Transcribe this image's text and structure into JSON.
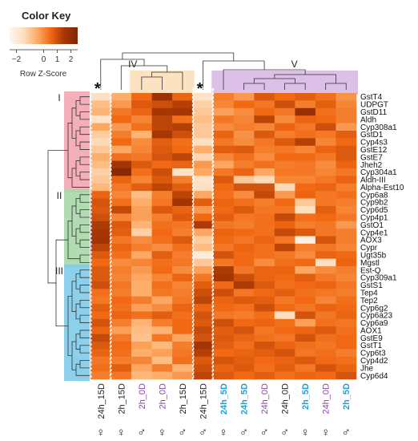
{
  "chart_data": {
    "type": "heatmap",
    "color_key": {
      "title": "Color Key",
      "scale_label": "Row Z-Score",
      "ticks": [
        "−2",
        "0",
        "1",
        "2"
      ],
      "tick_values": [
        -2,
        0,
        1,
        2
      ],
      "range": [
        -2.5,
        2.5
      ],
      "colors": [
        "#fff6ee",
        "#fde0c2",
        "#fdae6b",
        "#f16913",
        "#a63603",
        "#7f2704"
      ]
    },
    "rows": [
      "GstT4",
      "UDPGT",
      "GstD11",
      "Aldh",
      "Cyp308a1",
      "GstD1",
      "Cyp4s3",
      "GstE12",
      "GstE7",
      "Jheh2",
      "Cyp304a1",
      "Aldh-III",
      "Alpha-Est10",
      "Cyp6a8",
      "Cyp9b2",
      "Cyp6d5",
      "Cyp4p1",
      "GstO1",
      "Cyp4e1",
      "AOX3",
      "Cypr",
      "Ugt35b",
      "Mgstl",
      "Est-Q",
      "Cyp309a1",
      "GstS1",
      "Tep4",
      "Tep2",
      "Cyp6g2",
      "Cyp6a23",
      "Cyp6a9",
      "AOX1",
      "GstE9",
      "GstT1",
      "Cyp6t3",
      "Cyp4d2",
      "Jhe",
      "Cyp6d4"
    ],
    "columns": [
      {
        "label": "24h_15D",
        "sex": "♀",
        "color": "#222222",
        "bold": false
      },
      {
        "label": "2h_15D",
        "sex": "♀",
        "color": "#222222",
        "bold": false
      },
      {
        "label": "2h_0D",
        "sex": "♂",
        "color": "#8e44ad",
        "bold": false
      },
      {
        "label": "2h_0D",
        "sex": "♀",
        "color": "#8e44ad",
        "bold": false
      },
      {
        "label": "2h_15D",
        "sex": "♂",
        "color": "#222222",
        "bold": false
      },
      {
        "label": "24h_15D",
        "sex": "♂",
        "color": "#222222",
        "bold": false
      },
      {
        "label": "24h_5D",
        "sex": "♀",
        "color": "#1f9ed8",
        "bold": true
      },
      {
        "label": "24h_5D",
        "sex": "♂",
        "color": "#1f9ed8",
        "bold": true
      },
      {
        "label": "24h_0D",
        "sex": "♂",
        "color": "#8e44ad",
        "bold": false
      },
      {
        "label": "24h_0D",
        "sex": "♂",
        "color": "#222222",
        "bold": false
      },
      {
        "label": "2h_5D",
        "sex": "♀",
        "color": "#1f9ed8",
        "bold": true
      },
      {
        "label": "24h_0D",
        "sex": "♀",
        "color": "#8e44ad",
        "bold": false
      },
      {
        "label": "2h_5D",
        "sex": "♂",
        "color": "#1f9ed8",
        "bold": true
      }
    ],
    "values": [
      [
        -1.5,
        -0.5,
        0.5,
        1.8,
        0.6,
        -1.6,
        0.2,
        -0.2,
        0.8,
        0.5,
        0.7,
        0.4,
        -0.1
      ],
      [
        -0.8,
        -0.2,
        0.8,
        1.0,
        1.3,
        -1.2,
        0.1,
        0.5,
        0.3,
        1.0,
        0.2,
        0.7,
        0.1
      ],
      [
        -0.6,
        0.3,
        0.6,
        1.5,
        1.5,
        -1.0,
        -0.3,
        0.0,
        0.5,
        0.3,
        1.9,
        0.4,
        0.2
      ],
      [
        -1.6,
        0.5,
        0.1,
        1.2,
        0.4,
        -0.8,
        0.3,
        0.1,
        1.2,
        0.0,
        0.6,
        0.5,
        0.2
      ],
      [
        -0.4,
        -0.2,
        0.4,
        1.2,
        1.3,
        -1.0,
        0.0,
        0.2,
        0.1,
        0.6,
        0.3,
        1.0,
        -0.2
      ],
      [
        -1.1,
        0.2,
        -0.6,
        1.5,
        1.0,
        -1.0,
        0.6,
        -0.1,
        0.8,
        0.2,
        0.4,
        0.3,
        0.7
      ],
      [
        -1.4,
        0.5,
        0.0,
        0.7,
        0.4,
        -1.5,
        0.3,
        0.0,
        0.3,
        0.8,
        1.3,
        0.1,
        0.5
      ],
      [
        -1.0,
        -0.4,
        0.1,
        0.8,
        0.5,
        -0.5,
        0.7,
        0.8,
        0.2,
        0.3,
        0.1,
        0.6,
        0.8
      ],
      [
        -0.5,
        0.4,
        0.3,
        0.9,
        1.2,
        -1.3,
        0.1,
        0.4,
        0.0,
        0.5,
        0.5,
        0.3,
        0.8
      ],
      [
        -0.8,
        1.6,
        0.8,
        0.5,
        0.6,
        -0.2,
        -0.4,
        0.2,
        0.4,
        0.2,
        0.3,
        0.0,
        0.6
      ],
      [
        -1.2,
        2.3,
        0.4,
        1.0,
        -1.6,
        -0.4,
        0.3,
        0.6,
        -0.4,
        0.3,
        0.3,
        0.1,
        0.3
      ],
      [
        -1.0,
        0.6,
        0.1,
        0.8,
        0.2,
        -1.6,
        0.8,
        -1.0,
        -1.4,
        0.1,
        0.1,
        0.3,
        0.6
      ],
      [
        -0.7,
        0.3,
        0.7,
        1.2,
        0.7,
        -1.5,
        0.5,
        0.9,
        0.9,
        -1.4,
        0.5,
        0.6,
        0.2
      ],
      [
        0.6,
        0.1,
        -0.8,
        0.2,
        1.2,
        -0.4,
        0.4,
        0.0,
        1.1,
        -0.2,
        0.6,
        0.3,
        0.4
      ],
      [
        0.9,
        0.4,
        -0.5,
        0.3,
        1.6,
        0.7,
        0.6,
        0.4,
        0.2,
        0.5,
        -1.0,
        0.3,
        0.2
      ],
      [
        0.8,
        1.1,
        -0.3,
        0.8,
        0.6,
        -0.2,
        0.5,
        0.8,
        0.3,
        0.3,
        -1.5,
        0.7,
        0.1
      ],
      [
        1.0,
        0.1,
        -0.3,
        0.2,
        0.8,
        0.5,
        0.7,
        0.3,
        0.4,
        1.1,
        0.4,
        0.5,
        0.3
      ],
      [
        1.4,
        0.8,
        -0.6,
        0.4,
        0.3,
        1.4,
        0.3,
        0.2,
        0.4,
        0.6,
        0.2,
        0.3,
        -0.2
      ],
      [
        1.5,
        0.7,
        -1.2,
        0.5,
        0.2,
        -0.4,
        0.6,
        0.5,
        0.4,
        1.1,
        0.8,
        0.3,
        0.2
      ],
      [
        1.6,
        0.3,
        0.0,
        0.4,
        0.8,
        -1.1,
        0.5,
        0.3,
        0.6,
        0.3,
        -2.2,
        0.9,
        0.2
      ],
      [
        1.2,
        0.6,
        0.2,
        0.0,
        0.4,
        -0.8,
        0.3,
        0.6,
        0.4,
        1.2,
        0.2,
        0.3,
        0.1
      ],
      [
        0.8,
        0.4,
        -0.4,
        0.7,
        0.2,
        -2.0,
        0.9,
        0.5,
        0.4,
        0.3,
        0.0,
        0.6,
        0.5
      ],
      [
        0.5,
        0.0,
        0.1,
        0.4,
        0.3,
        -1.0,
        0.3,
        0.5,
        0.0,
        0.4,
        0.5,
        -1.5,
        0.6
      ],
      [
        0.8,
        0.2,
        -0.2,
        0.5,
        0.0,
        -0.3,
        1.4,
        0.3,
        0.6,
        0.6,
        -0.4,
        0.0,
        0.2
      ],
      [
        0.8,
        0.1,
        -0.4,
        0.1,
        0.6,
        0.3,
        1.5,
        1.0,
        0.6,
        0.5,
        0.7,
        0.3,
        0.1
      ],
      [
        1.0,
        0.3,
        -0.5,
        0.4,
        0.1,
        0.7,
        0.5,
        1.4,
        0.8,
        0.4,
        0.5,
        0.6,
        0.3
      ],
      [
        0.4,
        0.2,
        -0.5,
        0.3,
        0.2,
        1.0,
        1.0,
        0.3,
        0.5,
        0.7,
        0.4,
        0.3,
        0.2
      ],
      [
        0.3,
        0.5,
        0.2,
        -0.4,
        0.3,
        1.2,
        0.6,
        0.8,
        0.7,
        0.3,
        0.5,
        0.1,
        0.4
      ],
      [
        0.7,
        0.4,
        -0.3,
        0.0,
        0.6,
        0.6,
        0.5,
        0.4,
        1.0,
        0.5,
        0.3,
        0.6,
        0.5
      ],
      [
        0.5,
        0.6,
        0.4,
        0.7,
        0.4,
        0.9,
        0.3,
        0.2,
        0.4,
        -1.5,
        0.9,
        0.3,
        0.6
      ],
      [
        0.9,
        0.2,
        -0.6,
        0.2,
        0.5,
        0.8,
        1.0,
        0.5,
        0.6,
        0.4,
        -0.3,
        0.4,
        0.3
      ],
      [
        0.6,
        -0.3,
        -0.8,
        -0.6,
        0.5,
        1.1,
        0.7,
        0.9,
        0.3,
        0.5,
        0.6,
        0.8,
        0.4
      ],
      [
        1.1,
        0.3,
        -0.9,
        0.3,
        -0.4,
        0.9,
        0.8,
        0.6,
        0.4,
        0.3,
        0.9,
        0.4,
        0.5
      ],
      [
        0.8,
        0.5,
        -0.3,
        -0.7,
        0.2,
        1.6,
        0.7,
        0.4,
        0.9,
        0.6,
        0.4,
        0.3,
        0.5
      ],
      [
        0.6,
        0.4,
        -0.5,
        -0.3,
        0.3,
        1.3,
        0.5,
        0.6,
        0.7,
        0.9,
        0.3,
        0.4,
        0.2
      ],
      [
        0.3,
        0.2,
        0.1,
        -0.8,
        0.4,
        0.8,
        0.9,
        0.7,
        0.5,
        0.6,
        0.8,
        0.5,
        0.4
      ],
      [
        0.4,
        0.7,
        -0.4,
        0.2,
        -0.6,
        1.0,
        0.6,
        0.8,
        0.4,
        0.7,
        0.3,
        0.9,
        0.6
      ],
      [
        0.2,
        0.3,
        -0.7,
        -0.5,
        -0.2,
        1.2,
        0.8,
        0.5,
        0.7,
        0.4,
        0.6,
        0.5,
        0.9
      ]
    ],
    "row_clusters": [
      {
        "label": "I",
        "rows": [
          0,
          12
        ],
        "color": "#f4a6b4"
      },
      {
        "label": "II",
        "rows": [
          13,
          22
        ],
        "color": "#a8d8a8"
      },
      {
        "label": "III",
        "rows": [
          23,
          37
        ],
        "color": "#7fcbea"
      }
    ],
    "column_clusters": [
      {
        "label": "IV",
        "columns": [
          2,
          4
        ],
        "color": "#fbe0bb"
      },
      {
        "label": "V",
        "columns": [
          6,
          12
        ],
        "color": "#d9b9e6"
      }
    ],
    "starred_columns": [
      0,
      5
    ],
    "star_symbol": "*",
    "legend_placement": "top-left"
  }
}
